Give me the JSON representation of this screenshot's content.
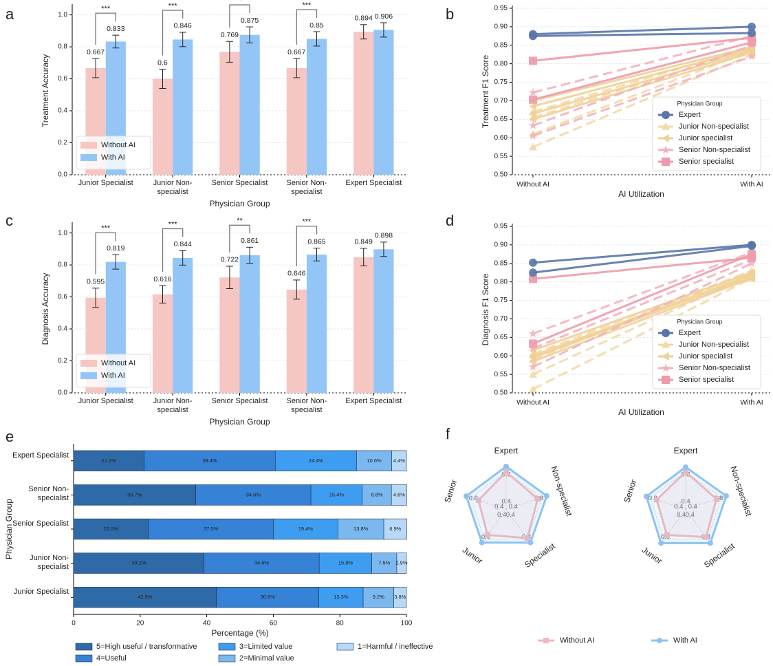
{
  "chart_data": [
    {
      "type": "bar",
      "label": "a",
      "xlabel": "Physician Group",
      "ylabel": "Treatment Accuracy",
      "categories": [
        "Junior Specialist",
        "Junior Non-specialist",
        "Senior Specialist",
        "Senior Non-specialist",
        "Expert Specialist"
      ],
      "series": [
        {
          "name": "Without AI",
          "color": "#f6c6c3",
          "values": [
            0.667,
            0.6,
            0.769,
            0.667,
            0.894
          ],
          "errors": [
            0.06,
            0.06,
            0.065,
            0.06,
            0.045
          ]
        },
        {
          "name": "With AI",
          "color": "#93c6f7",
          "values": [
            0.833,
            0.846,
            0.875,
            0.85,
            0.906
          ],
          "errors": [
            0.04,
            0.045,
            0.05,
            0.045,
            0.045
          ]
        }
      ],
      "significance": [
        "***",
        "***",
        "*",
        "***",
        null
      ],
      "ylim": [
        0,
        1.05
      ],
      "yticks": [
        {
          "value": 0,
          "label": "0.0"
        },
        0.2,
        0.4,
        0.6,
        0.8,
        {
          "value": 1,
          "label": "1.0"
        }
      ],
      "grid": true
    },
    {
      "type": "line",
      "label": "b",
      "xlabel": "AI Utilization",
      "ylabel": "Treatment F1 Score",
      "legend_title": "Physician Group",
      "categories": [
        "Without AI",
        "With AI"
      ],
      "ylim": [
        0.5,
        0.95
      ],
      "yticks": [
        {
          "value": 0.5,
          "label": "0.50"
        },
        0.55,
        {
          "value": 0.6,
          "label": "0.60"
        },
        0.65,
        {
          "value": 0.7,
          "label": "0.70"
        },
        0.75,
        {
          "value": 0.8,
          "label": "0.80"
        },
        0.85,
        {
          "value": 0.9,
          "label": "0.90"
        },
        0.95
      ],
      "grid": true,
      "series": [
        {
          "name": "Expert",
          "color": "#5874aa",
          "marker": "circle",
          "dashed": false,
          "lines": [
            [
              0.88,
              0.9
            ],
            [
              0.875,
              0.883
            ]
          ]
        },
        {
          "name": "Junior Non-specialist",
          "color": "#f3d9a6",
          "marker": "triangle",
          "dashed": true,
          "lines": [
            [
              0.575,
              0.825
            ],
            [
              0.61,
              0.835
            ],
            [
              0.655,
              0.84
            ],
            [
              0.67,
              0.845
            ]
          ]
        },
        {
          "name": "Junior specialist",
          "color": "#efcf95",
          "marker": "triangle-left",
          "dashed": false,
          "lines": [
            [
              0.685,
              0.84
            ],
            [
              0.665,
              0.835
            ],
            [
              0.65,
              0.83
            ],
            [
              0.7,
              0.845
            ]
          ]
        },
        {
          "name": "Senior Non-specialist",
          "color": "#f2b3bd",
          "marker": "star",
          "dashed": true,
          "lines": [
            [
              0.722,
              0.875
            ],
            [
              0.633,
              0.85
            ],
            [
              0.605,
              0.82
            ]
          ]
        },
        {
          "name": "Senior specialist",
          "color": "#ee9aa9",
          "marker": "square",
          "dashed": false,
          "lines": [
            [
              0.808,
              0.87
            ],
            [
              0.703,
              0.858
            ]
          ]
        }
      ]
    },
    {
      "type": "bar",
      "label": "c",
      "xlabel": "Physician Group",
      "ylabel": "Diagnosis Accuracy",
      "categories": [
        "Junior Specialist",
        "Junior Non-specialist",
        "Senior Specialist",
        "Senior Non-specialist",
        "Expert Specialist"
      ],
      "series": [
        {
          "name": "Without AI",
          "color": "#f6c6c3",
          "values": [
            0.595,
            0.616,
            0.722,
            0.646,
            0.849
          ],
          "errors": [
            0.06,
            0.055,
            0.07,
            0.06,
            0.055
          ]
        },
        {
          "name": "With AI",
          "color": "#93c6f7",
          "values": [
            0.819,
            0.844,
            0.861,
            0.865,
            0.898
          ],
          "errors": [
            0.045,
            0.045,
            0.05,
            0.04,
            0.045
          ]
        }
      ],
      "significance": [
        "***",
        "***",
        "**",
        "***",
        null
      ],
      "ylim": [
        0,
        1.05
      ],
      "yticks": [
        {
          "value": 0,
          "label": "0.0"
        },
        0.2,
        0.4,
        0.6,
        0.8,
        {
          "value": 1,
          "label": "1.0"
        }
      ],
      "grid": true
    },
    {
      "type": "line",
      "label": "d",
      "xlabel": "AI Utilization",
      "ylabel": "Diagnosis F1 Score",
      "legend_title": "Physician Group",
      "categories": [
        "Without AI",
        "With AI"
      ],
      "ylim": [
        0.5,
        0.95
      ],
      "yticks": [
        {
          "value": 0.5,
          "label": "0.50"
        },
        0.55,
        {
          "value": 0.6,
          "label": "0.60"
        },
        0.65,
        {
          "value": 0.7,
          "label": "0.70"
        },
        0.75,
        {
          "value": 0.8,
          "label": "0.80"
        },
        0.85,
        {
          "value": 0.9,
          "label": "0.90"
        },
        0.95
      ],
      "grid": true,
      "series": [
        {
          "name": "Expert",
          "color": "#5874aa",
          "marker": "circle",
          "dashed": false,
          "lines": [
            [
              0.852,
              0.9
            ],
            [
              0.825,
              0.897
            ]
          ]
        },
        {
          "name": "Junior Non-specialist",
          "color": "#f3d9a6",
          "marker": "triangle",
          "dashed": true,
          "lines": [
            [
              0.51,
              0.81
            ],
            [
              0.55,
              0.82
            ],
            [
              0.59,
              0.83
            ],
            [
              0.605,
              0.83
            ]
          ]
        },
        {
          "name": "Junior specialist",
          "color": "#efcf95",
          "marker": "triangle-left",
          "dashed": false,
          "lines": [
            [
              0.585,
              0.81
            ],
            [
              0.6,
              0.82
            ],
            [
              0.615,
              0.825
            ],
            [
              0.595,
              0.815
            ]
          ]
        },
        {
          "name": "Senior Non-specialist",
          "color": "#f2b3bd",
          "marker": "star",
          "dashed": true,
          "lines": [
            [
              0.66,
              0.88
            ],
            [
              0.57,
              0.85
            ],
            [
              0.62,
              0.86
            ]
          ]
        },
        {
          "name": "Senior specialist",
          "color": "#ee9aa9",
          "marker": "square",
          "dashed": false,
          "lines": [
            [
              0.808,
              0.865
            ],
            [
              0.633,
              0.875
            ]
          ]
        }
      ]
    },
    {
      "type": "barh",
      "label": "e",
      "xlabel": "Percentage (%)",
      "ylabel": "Physician Group",
      "categories": [
        "Expert Specialist",
        "Senior Non-specialist",
        "Senior Specialist",
        "Junior Non-specialist",
        "Junior Specialist"
      ],
      "xlim": [
        0,
        100
      ],
      "xticks": [
        0,
        20,
        40,
        60,
        80,
        100
      ],
      "series": [
        {
          "name": "5=High useful / transformative",
          "color": "#2f6aa8",
          "values": [
            21.2,
            36.7,
            22.5,
            39.2,
            42.9
          ],
          "value_labels": [
            "21.2%",
            "36.7%",
            "22.5%",
            "39.2%",
            "42.9%"
          ]
        },
        {
          "name": "4=Useful",
          "color": "#3582d6",
          "values": [
            39.4,
            34.6,
            37.5,
            34.6,
            30.8
          ],
          "value_labels": [
            "39.4%",
            "34.6%",
            "37.5%",
            "34.6%",
            "30.8%"
          ]
        },
        {
          "name": "3=Limited value",
          "color": "#3e9df0",
          "values": [
            24.4,
            15.4,
            19.4,
            15.8,
            13.3
          ],
          "value_labels": [
            "24.4%",
            "15.4%",
            "19.4%",
            "15.8%",
            "13.3%"
          ]
        },
        {
          "name": "2=Minimal value",
          "color": "#7ab8ef",
          "values": [
            10.6,
            8.8,
            13.8,
            7.5,
            9.2
          ],
          "value_labels": [
            "10.6%",
            "8.8%",
            "13.8%",
            "7.5%",
            "9.2%"
          ]
        },
        {
          "name": "1=Harmful / ineffective",
          "color": "#b7d9f7",
          "values": [
            4.4,
            4.6,
            6.9,
            2.9,
            3.8
          ],
          "value_labels": [
            "4.4%",
            "4.6%",
            "6.9%",
            "2.9%",
            "3.8%"
          ]
        }
      ]
    },
    {
      "type": "radar",
      "label": "f",
      "axes": [
        "Expert",
        "Non-specialist",
        "Specialist",
        "Junior",
        "Senior"
      ],
      "rlim": [
        0.25,
        0.9
      ],
      "rticks": [
        0.4,
        0.8
      ],
      "series": [
        {
          "name": "Without AI",
          "color": "#f4b8bd",
          "marker": "square",
          "values": [
            [
              0.8,
              0.74,
              0.78,
              0.72,
              0.68
            ],
            [
              0.8,
              0.73,
              0.76,
              0.72,
              0.7
            ]
          ]
        },
        {
          "name": "With AI",
          "color": "#8cc3f3",
          "marker": "circle",
          "values": [
            [
              0.88,
              0.88,
              0.86,
              0.86,
              0.87
            ],
            [
              0.87,
              0.88,
              0.87,
              0.87,
              0.86
            ]
          ]
        }
      ]
    }
  ]
}
